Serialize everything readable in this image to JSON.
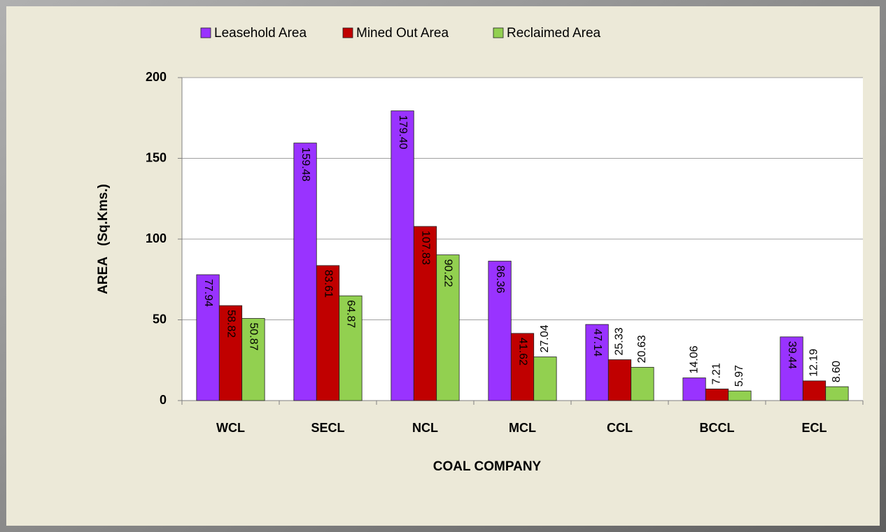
{
  "chart_data": {
    "type": "bar",
    "categories": [
      "WCL",
      "SECL",
      "NCL",
      "MCL",
      "CCL",
      "BCCL",
      "ECL"
    ],
    "series": [
      {
        "name": "Leasehold Area",
        "color": "#9933ff",
        "values": [
          77.94,
          159.48,
          179.4,
          86.36,
          47.14,
          14.06,
          39.44
        ],
        "value_labels": [
          "77.94",
          "159.48",
          "179.40",
          "86.36",
          "47.14",
          "14.06",
          "39.44"
        ]
      },
      {
        "name": "Mined Out Area",
        "color": "#c00000",
        "values": [
          58.82,
          83.61,
          107.83,
          41.62,
          25.33,
          7.21,
          12.19
        ],
        "value_labels": [
          "58.82",
          "83.61",
          "107.83",
          "41.62",
          "25.33",
          "7.21",
          "12.19"
        ]
      },
      {
        "name": "Reclaimed Area",
        "color": "#92d050",
        "values": [
          50.87,
          64.87,
          90.22,
          27.04,
          20.63,
          5.97,
          8.6
        ],
        "value_labels": [
          "50.87",
          "64.87",
          "90.22",
          "27.04",
          "20.63",
          "5.97",
          "8.60"
        ]
      }
    ],
    "xlabel": "COAL COMPANY",
    "ylabel": "AREA   (Sq.Kms.)",
    "ylim": [
      0,
      200
    ],
    "yticks": [
      0,
      50,
      100,
      150,
      200
    ],
    "grid": true,
    "legend": "top"
  }
}
